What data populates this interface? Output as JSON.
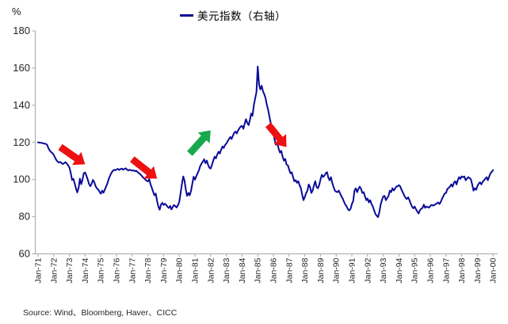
{
  "footer": {
    "source": "Source: Wind、Bloomberg, Haver、CICC"
  },
  "chart_data": {
    "type": "line",
    "title": "",
    "xlabel": "",
    "ylabel": "%",
    "ylim": [
      60,
      180
    ],
    "yticks": [
      60,
      80,
      100,
      120,
      140,
      160,
      180
    ],
    "grid": false,
    "legend_position": "top-center",
    "x_tick_labels": [
      "Jan-71",
      "Jan-72",
      "Jan-73",
      "Jan-74",
      "Jan-75",
      "Jan-76",
      "Jan-77",
      "Jan-78",
      "Jan-79",
      "Jan-80",
      "Jan-81",
      "Jan-82",
      "Jan-83",
      "Jan-84",
      "Jan-85",
      "Jan-86",
      "Jan-87",
      "Jan-88",
      "Jan-89",
      "Jan-90",
      "Jan-91",
      "Jan-92",
      "Jan-93",
      "Jan-94",
      "Jan-95",
      "Jan-96",
      "Jan-97",
      "Jan-98",
      "Jan-99",
      "Jan-00"
    ],
    "x_unit": "month",
    "series": [
      {
        "name": "美元指数（右轴）",
        "color": "#0a0a99",
        "start": "Jan-71",
        "end": "Jan-00",
        "values": [
          120.0,
          119.9,
          119.8,
          119.7,
          119.5,
          119.3,
          119.2,
          118.6,
          116.8,
          115.5,
          114.8,
          114.2,
          113.3,
          111.8,
          110.5,
          109.6,
          109.2,
          109.5,
          108.8,
          108.4,
          108.8,
          109.4,
          108.6,
          107.6,
          106.5,
          103.5,
          99.8,
          100.4,
          98.0,
          95.2,
          93.1,
          95.5,
          100.5,
          97.5,
          100.0,
          103.5,
          103.8,
          102.0,
          100.0,
          97.6,
          96.4,
          97.8,
          99.8,
          98.6,
          96.5,
          95.2,
          94.6,
          93.5,
          92.4,
          94.0,
          92.9,
          94.5,
          96.2,
          97.8,
          100.2,
          102.0,
          103.5,
          104.5,
          105.2,
          105.0,
          105.4,
          105.8,
          105.2,
          105.6,
          105.9,
          105.3,
          105.7,
          106.1,
          105.4,
          104.9,
          105.3,
          105.0,
          104.8,
          105.0,
          104.5,
          104.8,
          104.1,
          103.5,
          103.0,
          102.3,
          101.4,
          100.7,
          100.0,
          99.4,
          99.0,
          100.2,
          97.5,
          95.5,
          93.5,
          91.5,
          92.5,
          88.5,
          85.5,
          83.8,
          86.5,
          87.5,
          86.3,
          87.0,
          86.4,
          85.4,
          84.7,
          85.8,
          83.9,
          85.3,
          86.3,
          85.6,
          85.0,
          86.2,
          88.0,
          92.5,
          97.5,
          101.7,
          99.5,
          94.5,
          91.2,
          92.8,
          91.5,
          94.0,
          97.8,
          101.5,
          100.0,
          101.8,
          103.3,
          105.0,
          107.2,
          108.6,
          109.6,
          110.9,
          108.8,
          110.2,
          108.0,
          106.4,
          105.9,
          108.0,
          110.2,
          112.3,
          111.4,
          113.4,
          115.0,
          114.0,
          116.0,
          117.8,
          117.0,
          118.6,
          119.4,
          120.6,
          121.8,
          122.9,
          121.8,
          123.6,
          125.2,
          125.8,
          124.8,
          126.5,
          127.6,
          128.6,
          128.9,
          127.3,
          130.0,
          132.5,
          130.5,
          129.3,
          132.0,
          135.5,
          134.3,
          140.0,
          143.5,
          147.0,
          160.8,
          151.0,
          148.5,
          150.5,
          147.5,
          146.0,
          143.8,
          140.0,
          137.4,
          133.6,
          130.2,
          128.1,
          125.5,
          120.9,
          118.7,
          119.8,
          116.6,
          114.5,
          115.4,
          112.3,
          110.2,
          111.1,
          108.1,
          107.7,
          105.5,
          103.4,
          103.9,
          101.3,
          99.1,
          99.7,
          98.3,
          99.1,
          97.0,
          95.3,
          91.9,
          88.9,
          90.6,
          92.8,
          94.0,
          97.4,
          96.0,
          92.8,
          94.1,
          97.0,
          99.1,
          96.1,
          95.3,
          97.1,
          100.0,
          102.6,
          101.4,
          102.1,
          103.4,
          104.0,
          101.0,
          99.6,
          101.3,
          98.1,
          96.0,
          94.0,
          93.5,
          93.2,
          94.1,
          92.5,
          91.0,
          89.8,
          88.0,
          86.5,
          85.5,
          84.0,
          83.4,
          84.3,
          86.8,
          88.5,
          94.0,
          95.3,
          93.2,
          95.0,
          96.2,
          95.0,
          92.8,
          93.2,
          91.0,
          88.9,
          89.8,
          87.7,
          88.9,
          86.8,
          85.5,
          83.4,
          81.5,
          80.5,
          79.8,
          82.5,
          86.5,
          88.9,
          91.0,
          91.2,
          88.9,
          90.1,
          91.1,
          94.0,
          93.2,
          95.3,
          94.1,
          95.1,
          96.2,
          96.5,
          97.0,
          96.2,
          94.5,
          93.0,
          91.5,
          90.2,
          89.5,
          90.5,
          89.0,
          87.0,
          85.5,
          84.5,
          85.5,
          84.0,
          82.8,
          81.7,
          83.5,
          84.3,
          84.7,
          86.5,
          84.8,
          85.5,
          85.2,
          84.9,
          85.8,
          86.4,
          86.0,
          86.2,
          86.8,
          87.2,
          87.7,
          86.8,
          88.0,
          89.8,
          91.1,
          92.5,
          92.8,
          94.9,
          95.5,
          96.2,
          97.4,
          96.2,
          98.3,
          99.1,
          97.4,
          99.6,
          101.3,
          100.4,
          101.7,
          101.3,
          101.7,
          99.6,
          100.5,
          101.3,
          100.8,
          100.2,
          97.4,
          94.0,
          95.3,
          94.5,
          96.5,
          97.8,
          98.5,
          97.4,
          98.8,
          99.5,
          100.4,
          101.3,
          99.6,
          101.7,
          103.4,
          104.2,
          105.1
        ]
      }
    ],
    "annotations": [
      {
        "name": "red-down-arrow-1973",
        "type": "block-arrow",
        "direction": "down-right",
        "color": "#ee1111",
        "from": {
          "month": 17,
          "value": 117.5
        },
        "to": {
          "month": 36,
          "value": 108.2
        }
      },
      {
        "name": "red-down-arrow-1978",
        "type": "block-arrow",
        "direction": "down-right",
        "color": "#ee1111",
        "from": {
          "month": 72,
          "value": 111.0
        },
        "to": {
          "month": 91,
          "value": 100.5
        }
      },
      {
        "name": "green-up-arrow-1981",
        "type": "block-arrow",
        "direction": "up-right",
        "color": "#17a94e",
        "from": {
          "month": 116,
          "value": 114.0
        },
        "to": {
          "month": 132,
          "value": 126.5
        }
      },
      {
        "name": "red-down-arrow-1985",
        "type": "block-arrow",
        "direction": "down-right",
        "color": "#ee1111",
        "from": {
          "month": 176,
          "value": 129.5
        },
        "to": {
          "month": 190,
          "value": 117.5
        }
      }
    ]
  }
}
